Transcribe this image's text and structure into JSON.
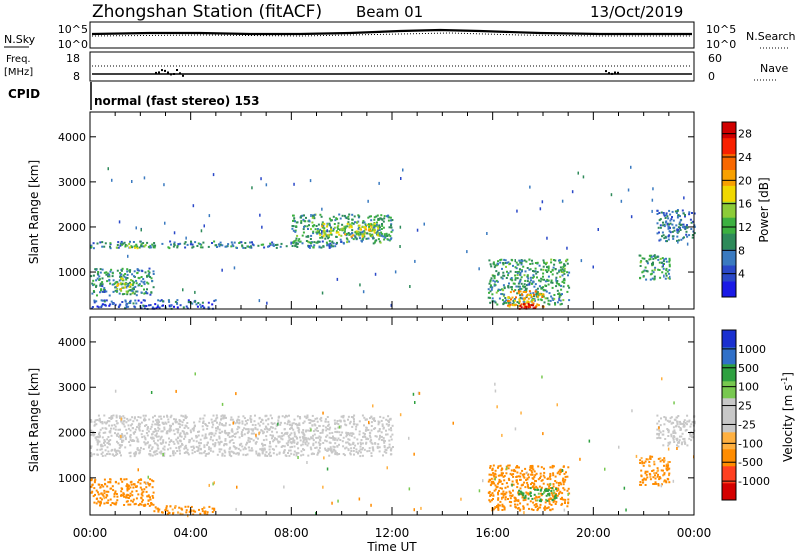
{
  "header": {
    "station": "Zhongshan Station (fitACF)",
    "beam": "Beam 01",
    "date": "13/Oct/2019"
  },
  "strip_panels": {
    "noise": {
      "left_label": "N.Sky",
      "left_ticks": [
        "10^5",
        "10^0"
      ],
      "right_ticks": [
        "10^5",
        "10^0"
      ],
      "right_label": "N.Search"
    },
    "freq": {
      "left_label_1": "Freq.",
      "left_label_2": "[MHz]",
      "left_ticks": [
        "18",
        "8"
      ],
      "right_ticks": [
        "60",
        "0"
      ],
      "right_label": "Nave"
    },
    "cpid": {
      "label": "CPID",
      "mode": "normal (fast stereo) 153"
    }
  },
  "colors": {
    "power_scale": [
      "#1a1ae6",
      "#2a48c8",
      "#3a7ac0",
      "#2e8a5a",
      "#3cb040",
      "#8ccc38",
      "#f0d800",
      "#f8a000",
      "#f86800",
      "#f82000",
      "#d00000"
    ],
    "velocity_scale": [
      "#d40000",
      "#ff4020",
      "#ff8c00",
      "#ffb040",
      "#c8c8c8",
      "#c8c8c8",
      "#78c850",
      "#2ea040",
      "#3070c8",
      "#1a30d0"
    ]
  },
  "chart_data": [
    {
      "type": "heatmap",
      "name": "power",
      "ylabel": "Slant Range [km]",
      "xlabel": "",
      "x_range": [
        0,
        24
      ],
      "ylim": [
        180,
        4550
      ],
      "x_ticks": [
        "00:00",
        "04:00",
        "08:00",
        "12:00",
        "16:00",
        "20:00",
        "00:00"
      ],
      "y_ticks": [
        "1000",
        "2000",
        "3000",
        "4000"
      ],
      "colorbar_label": "Power [dB]",
      "colorbar_ticks": [
        "4",
        "8",
        "12",
        "16",
        "20",
        "24",
        "28"
      ],
      "colorbar_range": [
        0,
        30
      ],
      "features": [
        {
          "t0": 0.0,
          "t1": 10.0,
          "r0": 1550,
          "r1": 1700,
          "value": 8
        },
        {
          "t0": 1.0,
          "t1": 2.2,
          "r0": 1550,
          "r1": 1650,
          "value": 14
        },
        {
          "t0": 8.0,
          "t1": 12.0,
          "r0": 1650,
          "r1": 2300,
          "value": 10
        },
        {
          "t0": 9.0,
          "t1": 11.5,
          "r0": 1800,
          "r1": 2100,
          "value": 16
        },
        {
          "t0": 0.0,
          "t1": 2.5,
          "r0": 500,
          "r1": 1100,
          "value": 9
        },
        {
          "t0": 1.0,
          "t1": 1.7,
          "r0": 550,
          "r1": 900,
          "value": 16
        },
        {
          "t0": 0.0,
          "t1": 5.0,
          "r0": 200,
          "r1": 400,
          "value": 5
        },
        {
          "t0": 15.8,
          "t1": 19.0,
          "r0": 300,
          "r1": 1300,
          "value": 10
        },
        {
          "t0": 16.5,
          "t1": 18.0,
          "r0": 250,
          "r1": 600,
          "value": 20
        },
        {
          "t0": 17.0,
          "t1": 17.7,
          "r0": 190,
          "r1": 320,
          "value": 28
        },
        {
          "t0": 21.8,
          "t1": 23.0,
          "r0": 850,
          "r1": 1400,
          "value": 10
        },
        {
          "t0": 22.5,
          "t1": 24.0,
          "r0": 1700,
          "r1": 2400,
          "value": 7
        }
      ]
    },
    {
      "type": "heatmap",
      "name": "velocity",
      "ylabel": "Slant Range [km]",
      "xlabel": "Time UT",
      "x_range": [
        0,
        24
      ],
      "ylim": [
        180,
        4550
      ],
      "x_ticks": [
        "00:00",
        "04:00",
        "08:00",
        "12:00",
        "16:00",
        "20:00",
        "00:00"
      ],
      "y_ticks": [
        "1000",
        "2000",
        "3000",
        "4000"
      ],
      "colorbar_label": "Velocity [m s",
      "colorbar_label_sup": "-1",
      "colorbar_label_end": "]",
      "colorbar_ticks": [
        "1000",
        "500",
        "100",
        "25",
        "-25",
        "-100",
        "-500",
        "-1000"
      ],
      "features": [
        {
          "t0": 0.0,
          "t1": 12.0,
          "r0": 1500,
          "r1": 2400,
          "value": 0
        },
        {
          "t0": 0.0,
          "t1": 2.5,
          "r0": 400,
          "r1": 1000,
          "value": -300
        },
        {
          "t0": 2.5,
          "t1": 5.0,
          "r0": 200,
          "r1": 400,
          "value": -150
        },
        {
          "t0": 15.8,
          "t1": 19.0,
          "r0": 300,
          "r1": 1300,
          "value": -200
        },
        {
          "t0": 17.0,
          "t1": 18.5,
          "r0": 500,
          "r1": 800,
          "value": 150
        },
        {
          "t0": 21.8,
          "t1": 23.0,
          "r0": 850,
          "r1": 1500,
          "value": -150
        },
        {
          "t0": 22.5,
          "t1": 24.0,
          "r0": 1700,
          "r1": 2400,
          "value": 0
        }
      ]
    }
  ]
}
